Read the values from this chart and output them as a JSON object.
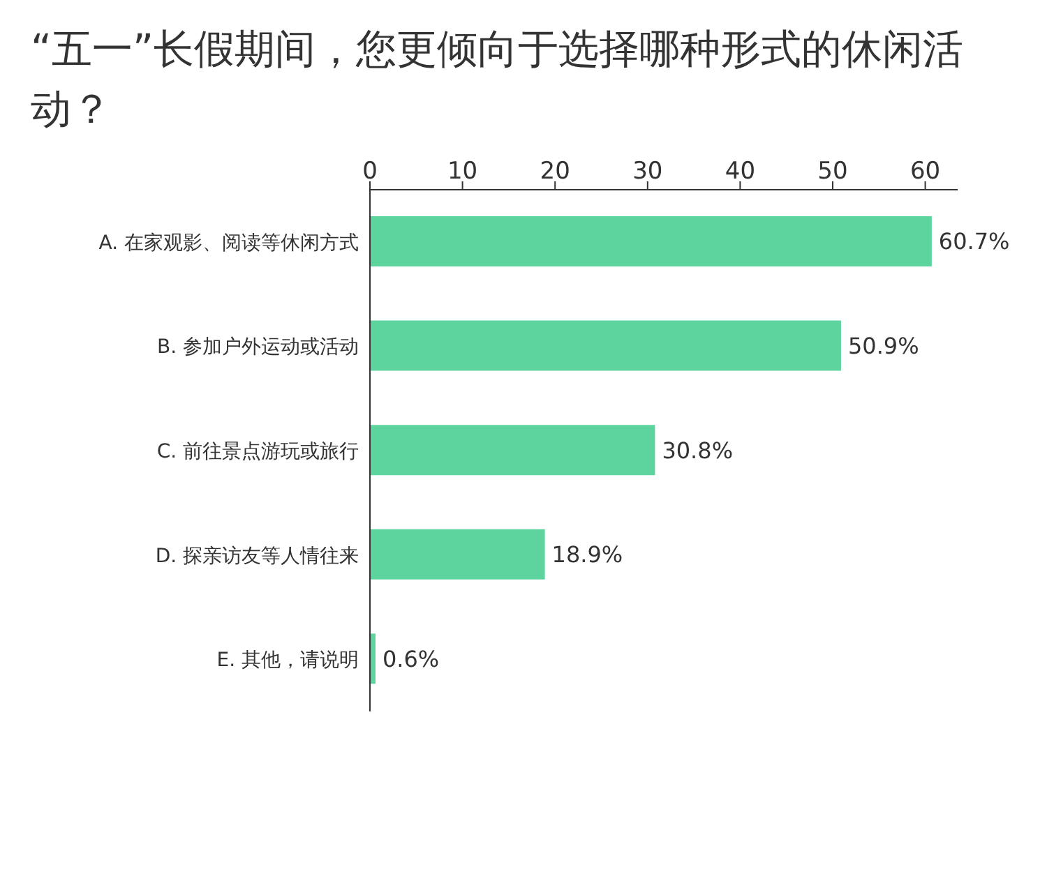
{
  "chart_data": {
    "type": "bar",
    "orientation": "horizontal",
    "title": "“五一”长假期间，您更倾向于选择哪种形式的休闲活动？",
    "categories": [
      "A. 在家观影、阅读等休闲方式",
      "B. 参加户外运动或活动",
      "C. 前往景点游玩或旅行",
      "D. 探亲访友等人情往来",
      "E. 其他，请说明"
    ],
    "values": [
      60.7,
      50.9,
      30.8,
      18.9,
      0.6
    ],
    "value_labels": [
      "60.7%",
      "50.9%",
      "30.8%",
      "18.9%",
      "0.6%"
    ],
    "color": "#5dd39e",
    "xlim": [
      0,
      63.5
    ],
    "xticks": [
      0,
      10,
      20,
      30,
      40,
      50,
      60
    ],
    "grid": false,
    "legend": false
  }
}
